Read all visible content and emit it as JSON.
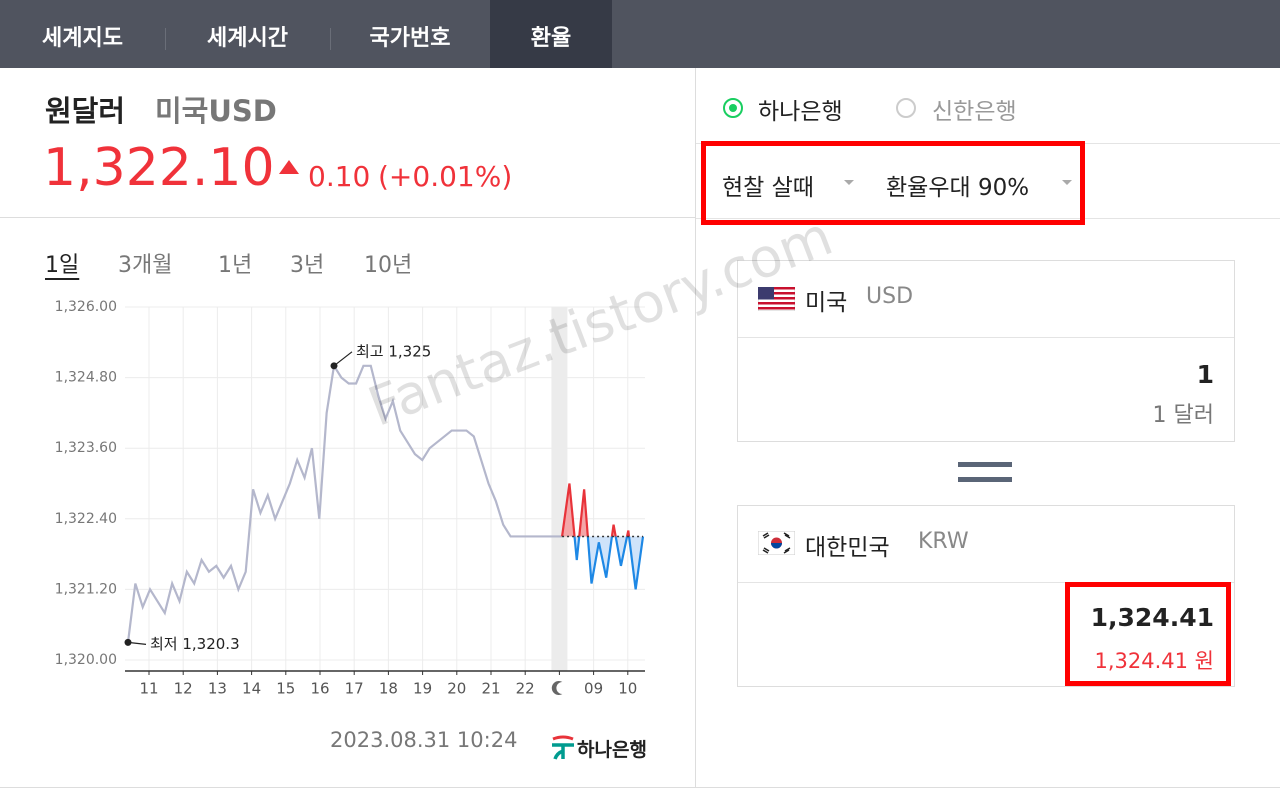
{
  "tabs": [
    {
      "label": "세계지도",
      "active": false
    },
    {
      "label": "세계시간",
      "active": false
    },
    {
      "label": "국가번호",
      "active": false
    },
    {
      "label": "환율",
      "active": true
    }
  ],
  "currency": {
    "name": "원달러",
    "code": "미국USD",
    "rate": "1,322.10",
    "change": "0.10",
    "change_percent": "(+0.01%)"
  },
  "periods": [
    {
      "label": "1일",
      "selected": true
    },
    {
      "label": "3개월",
      "selected": false
    },
    {
      "label": "1년",
      "selected": false
    },
    {
      "label": "3년",
      "selected": false
    },
    {
      "label": "10년",
      "selected": false
    }
  ],
  "chart_data": {
    "type": "line",
    "color": "#b4b7cc",
    "up_color": "#e8333a",
    "down_color": "#1e88e5",
    "grid": true,
    "ylim": [
      1320,
      1326
    ],
    "yticks": [
      {
        "value": 1320,
        "label": "1,320.00"
      },
      {
        "value": 1321.2,
        "label": "1,321.20"
      },
      {
        "value": 1322.4,
        "label": "1,322.40"
      },
      {
        "value": 1323.6,
        "label": "1,323.60"
      },
      {
        "value": 1324.8,
        "label": "1,324.80"
      },
      {
        "value": 1326,
        "label": "1,326.00"
      }
    ],
    "x_labels": [
      "11",
      "12",
      "13",
      "14",
      "15",
      "16",
      "17",
      "18",
      "19",
      "20",
      "21",
      "22",
      null,
      "09",
      "10"
    ],
    "values": [
      1320.3,
      1321.3,
      1320.9,
      1321.2,
      1321.0,
      1320.8,
      1321.3,
      1321.0,
      1321.5,
      1321.3,
      1321.7,
      1321.5,
      1321.6,
      1321.4,
      1321.6,
      1321.2,
      1321.5,
      1322.9,
      1322.5,
      1322.8,
      1322.4,
      1322.7,
      1323.0,
      1323.4,
      1323.1,
      1323.6,
      1322.4,
      1324.2,
      1325.0,
      1324.8,
      1324.7,
      1324.7,
      1325.0,
      1325.0,
      1324.5,
      1324.1,
      1324.4,
      1323.9,
      1323.7,
      1323.5,
      1323.4,
      1323.6,
      1323.7,
      1323.8,
      1323.9,
      1323.9,
      1323.9,
      1323.8,
      1323.4,
      1323.0,
      1322.7,
      1322.3,
      1322.1,
      1322.1,
      1322.1,
      1322.1,
      1322.1,
      1322.1,
      1322.1,
      1322.1,
      1323.0,
      1321.7,
      1322.9,
      1321.3,
      1322.0,
      1321.4,
      1322.3,
      1321.6,
      1322.2,
      1321.2,
      1322.1
    ],
    "annotations": [
      {
        "label": "최고 1,325",
        "value": 1325
      },
      {
        "label": "최저 1,320.3",
        "value": 1320.3
      }
    ]
  },
  "timestamp": "2023.08.31 10:24",
  "provider": "하나은행",
  "banks": [
    {
      "label": "하나은행",
      "selected": true
    },
    {
      "label": "신한은행",
      "selected": false
    }
  ],
  "options": [
    "현찰 살때",
    "환율우대 90%"
  ],
  "from": {
    "country": "미국",
    "code": "USD",
    "amount": "1",
    "unit_label": "1 달러"
  },
  "to": {
    "country": "대한민국",
    "code": "KRW",
    "amount": "1,324.41",
    "unit_label": "1,324.41 원"
  },
  "watermark": "Fantaz.tistory.com"
}
